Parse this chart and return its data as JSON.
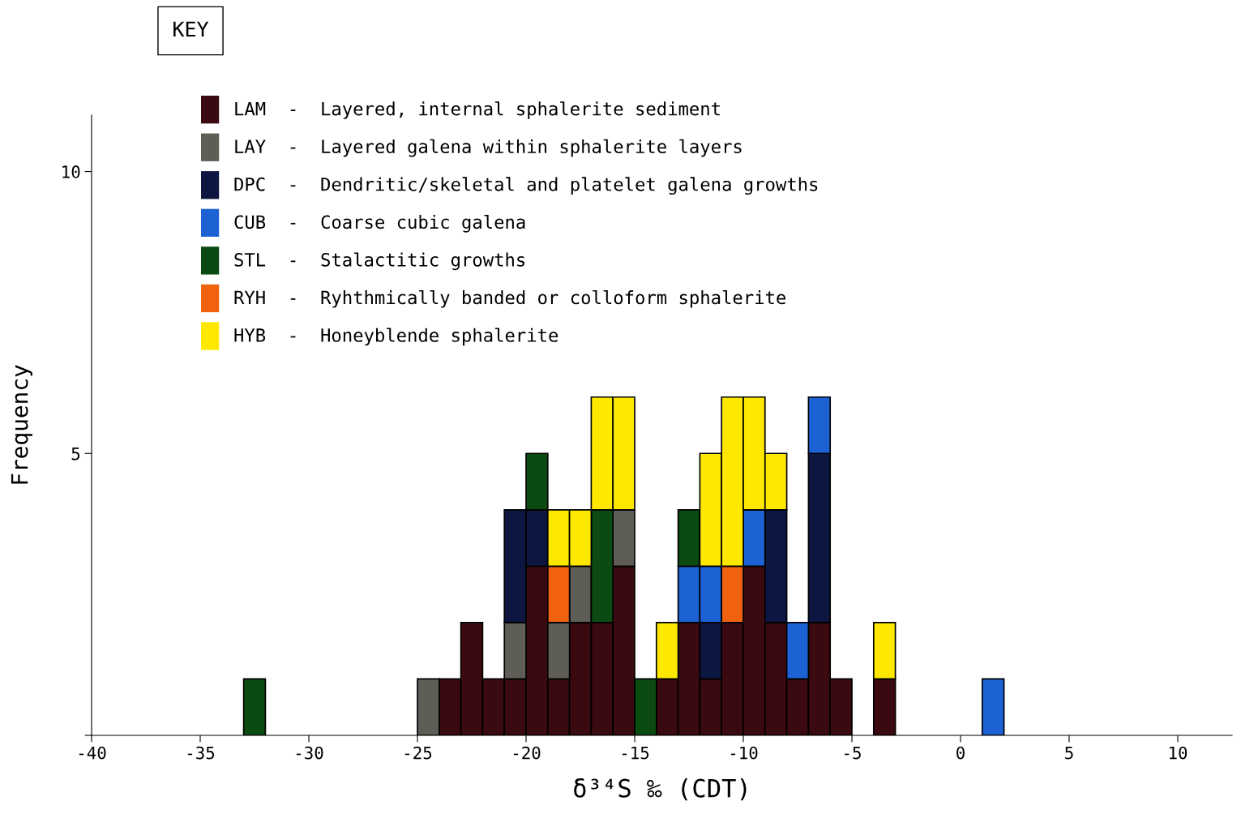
{
  "chart_data": {
    "type": "bar",
    "stacked": true,
    "xlabel": "δ³⁴S ‰ (CDT)",
    "ylabel": "Frequency",
    "legend_title": "KEY",
    "legend": "top left",
    "grid": false,
    "x": [
      -32.5,
      -31.5,
      -30.5,
      -29.5,
      -28.5,
      -27.5,
      -26.5,
      -25.5,
      -24.5,
      -23.5,
      -22.5,
      -21.5,
      -20.5,
      -19.5,
      -18.5,
      -17.5,
      -16.5,
      -15.5,
      -14.5,
      -13.5,
      -12.5,
      -11.5,
      -10.5,
      -9.5,
      -8.5,
      -7.5,
      -6.5,
      -5.5,
      -4.5,
      -3.5,
      -2.5,
      -1.5,
      -0.5,
      0.5,
      1.5
    ],
    "xlim": [
      -40,
      12.5
    ],
    "xticks": [
      -40,
      -35,
      -30,
      -25,
      -20,
      -15,
      -10,
      -5,
      0,
      5,
      10
    ],
    "ylim": [
      0,
      11
    ],
    "yticks": [
      {
        "value": 0,
        "label": null
      },
      5,
      10
    ],
    "series": [
      {
        "name": "LAM  -  Layered, internal sphalerite sediment",
        "color": "#3a0a10",
        "values": [
          0,
          0,
          0,
          0,
          0,
          0,
          0,
          0,
          0,
          1,
          2,
          1,
          1,
          3,
          1,
          2,
          2,
          3,
          0,
          1,
          2,
          1,
          2,
          3,
          2,
          1,
          2,
          1,
          0,
          1,
          0,
          0,
          0,
          0,
          0
        ]
      },
      {
        "name": "LAY  -  Layered galena within sphalerite layers",
        "color": "#5e5e56",
        "values": [
          0,
          0,
          0,
          0,
          0,
          0,
          0,
          0,
          1,
          0,
          0,
          0,
          1,
          0,
          1,
          1,
          0,
          1,
          0,
          0,
          0,
          0,
          0,
          0,
          0,
          0,
          0,
          0,
          0,
          0,
          0,
          0,
          0,
          0,
          0
        ]
      },
      {
        "name": "DPC  -  Dendritic/skeletal and platelet galena growths",
        "color": "#0c1640",
        "values": [
          0,
          0,
          0,
          0,
          0,
          0,
          0,
          0,
          0,
          0,
          0,
          0,
          2,
          1,
          0,
          0,
          0,
          0,
          0,
          0,
          0,
          1,
          0,
          0,
          2,
          0,
          3,
          0,
          0,
          0,
          0,
          0,
          0,
          0,
          0
        ]
      },
      {
        "name": "CUB  -  Coarse cubic galena",
        "color": "#1c62d4",
        "values": [
          0,
          0,
          0,
          0,
          0,
          0,
          0,
          0,
          0,
          0,
          0,
          0,
          0,
          0,
          0,
          0,
          0,
          0,
          0,
          0,
          1,
          1,
          0,
          1,
          0,
          1,
          1,
          0,
          0,
          0,
          0,
          0,
          0,
          0,
          1
        ]
      },
      {
        "name": "STL  -  Stalactitic growths",
        "color": "#0b4a10",
        "values": [
          1,
          0,
          0,
          0,
          0,
          0,
          0,
          0,
          0,
          0,
          0,
          0,
          0,
          1,
          0,
          0,
          2,
          0,
          1,
          0,
          1,
          0,
          0,
          0,
          0,
          0,
          0,
          0,
          0,
          0,
          0,
          0,
          0,
          0,
          0
        ]
      },
      {
        "name": "RYH  -  Ryhthmically banded or colloform sphalerite",
        "color": "#f0620f",
        "values": [
          0,
          0,
          0,
          0,
          0,
          0,
          0,
          0,
          0,
          0,
          0,
          0,
          0,
          0,
          1,
          0,
          0,
          0,
          0,
          0,
          0,
          0,
          1,
          0,
          0,
          0,
          0,
          0,
          0,
          0,
          0,
          0,
          0,
          0,
          0
        ]
      },
      {
        "name": "HYB  -  Honeyblende sphalerite",
        "color": "#ffe800",
        "values": [
          0,
          0,
          0,
          0,
          0,
          0,
          0,
          0,
          0,
          0,
          0,
          0,
          0,
          0,
          1,
          1,
          2,
          2,
          0,
          1,
          0,
          2,
          3,
          2,
          1,
          0,
          0,
          0,
          0,
          1,
          0,
          0,
          0,
          0,
          0
        ]
      }
    ]
  }
}
